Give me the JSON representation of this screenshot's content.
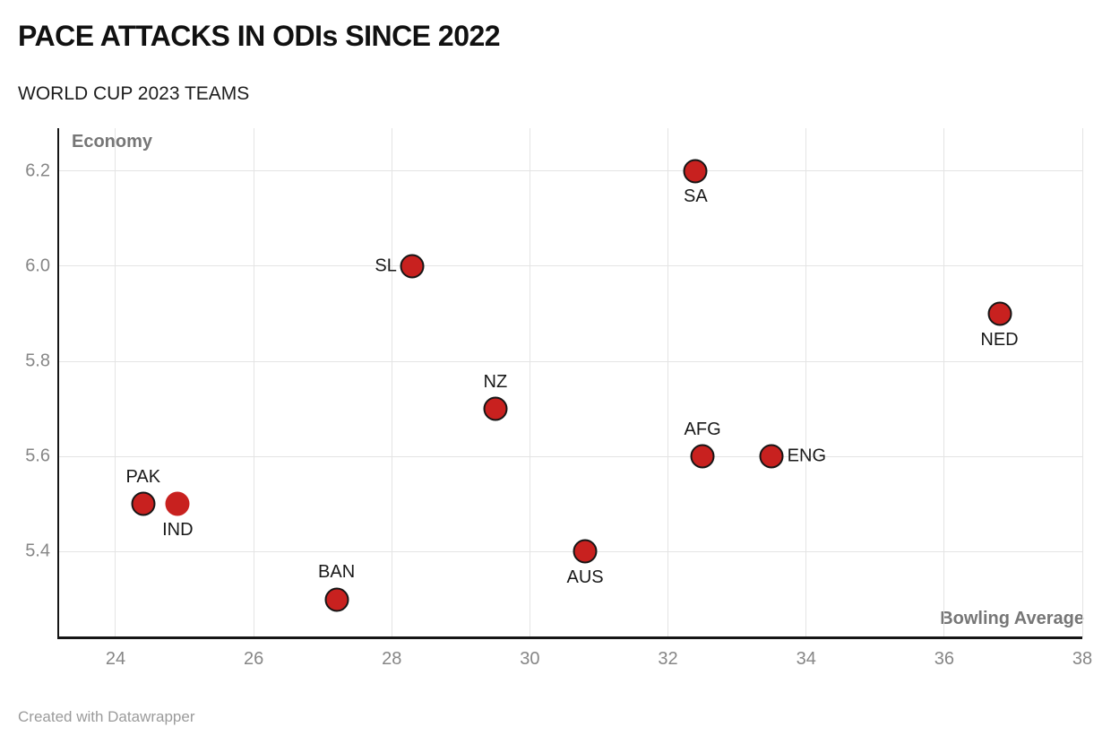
{
  "header": {
    "title": "PACE ATTACKS IN ODIs SINCE 2022",
    "subtitle": "WORLD CUP 2023 TEAMS"
  },
  "footer": {
    "credit": "Created with Datawrapper"
  },
  "chart_data": {
    "type": "scatter",
    "title": "PACE ATTACKS IN ODIs SINCE 2022",
    "subtitle": "WORLD CUP 2023 TEAMS",
    "xlabel": "Bowling Average",
    "ylabel": "Economy",
    "xlim": [
      23.17,
      38
    ],
    "ylim": [
      5.22,
      6.29
    ],
    "x_ticks": [
      "24",
      "26",
      "28",
      "30",
      "32",
      "34",
      "36",
      "38"
    ],
    "y_ticks": [
      "5.4",
      "5.6",
      "5.8",
      "6.0",
      "6.2"
    ],
    "grid": true,
    "legend": "none",
    "points": [
      {
        "team": "PAK",
        "bowling_average": 24.4,
        "economy": 5.5,
        "label_position": "above",
        "outlined": true
      },
      {
        "team": "IND",
        "bowling_average": 24.9,
        "economy": 5.5,
        "label_position": "below",
        "outlined": false
      },
      {
        "team": "BAN",
        "bowling_average": 27.2,
        "economy": 5.3,
        "label_position": "above",
        "outlined": true
      },
      {
        "team": "SL",
        "bowling_average": 28.3,
        "economy": 6.0,
        "label_position": "left",
        "outlined": true
      },
      {
        "team": "NZ",
        "bowling_average": 29.5,
        "economy": 5.7,
        "label_position": "above",
        "outlined": true
      },
      {
        "team": "AUS",
        "bowling_average": 30.8,
        "economy": 5.4,
        "label_position": "below",
        "outlined": true
      },
      {
        "team": "SA",
        "bowling_average": 32.4,
        "economy": 6.2,
        "label_position": "below",
        "outlined": true
      },
      {
        "team": "AFG",
        "bowling_average": 32.5,
        "economy": 5.6,
        "label_position": "above",
        "outlined": true
      },
      {
        "team": "ENG",
        "bowling_average": 33.5,
        "economy": 5.6,
        "label_position": "right",
        "outlined": true
      },
      {
        "team": "NED",
        "bowling_average": 36.8,
        "economy": 5.9,
        "label_position": "below",
        "outlined": true
      }
    ],
    "colors": {
      "point_fill": "#c8211f",
      "point_outline": "#161616",
      "grid": "#e4e4e4",
      "axis_line": "#151515",
      "tick_text": "#868686",
      "axis_title_text": "#767676",
      "point_label_text": "#191919"
    }
  }
}
